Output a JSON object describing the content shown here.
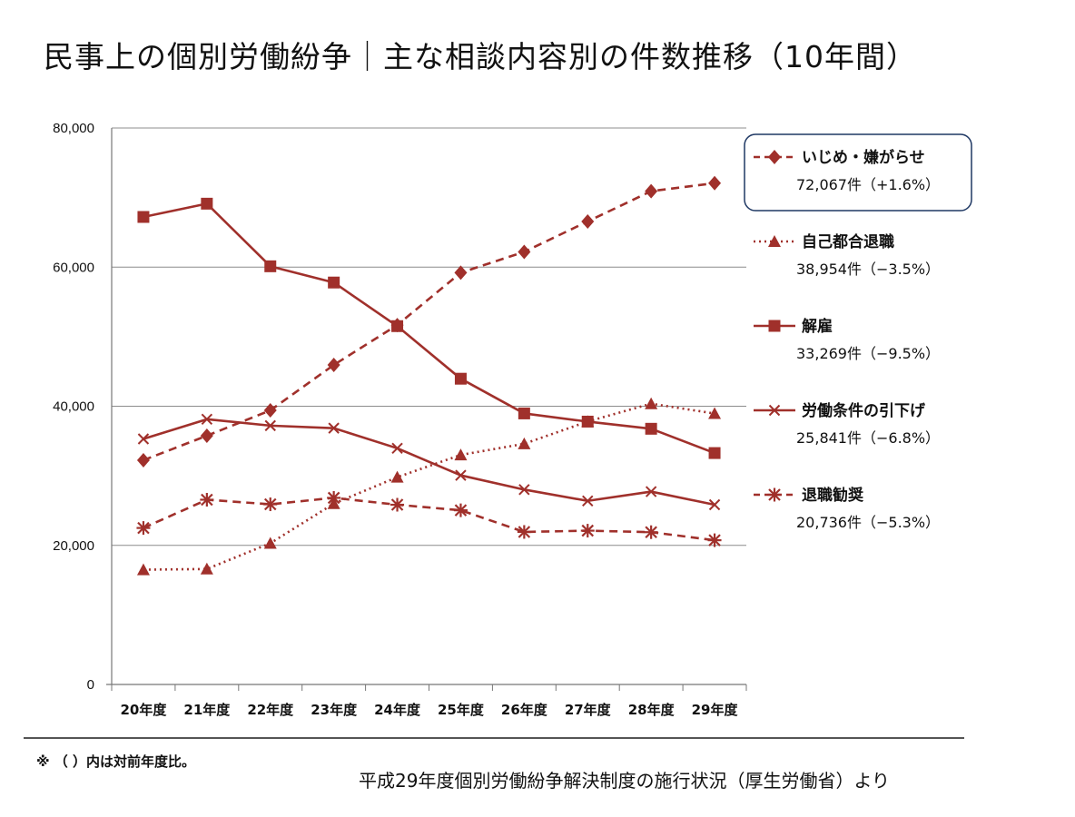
{
  "title": "民事上の個別労働紛争｜主な相談内容別の件数推移（10年間）",
  "footnote": "※ （ ）内は対前年度比。",
  "source": "平成29年度個別労働紛争解決制度の施行状況（厚生労働省）より",
  "colors": {
    "series": "#a0302b",
    "grid": "#8c8c8c",
    "highlight_border": "#1f3864"
  },
  "chart_data": {
    "type": "line",
    "categories": [
      "20年度",
      "21年度",
      "22年度",
      "23年度",
      "24年度",
      "25年度",
      "26年度",
      "27年度",
      "28年度",
      "29年度"
    ],
    "ylim": [
      0,
      80000
    ],
    "yticks": [
      0,
      20000,
      40000,
      60000,
      80000
    ],
    "ytick_labels": [
      "0",
      "20,000",
      "40,000",
      "60,000",
      "80,000"
    ],
    "grid": true,
    "legend_placement": "right",
    "series": [
      {
        "name": "いじめ・嫌がらせ",
        "stat": "72,067件（+1.6%）",
        "marker": "diamond",
        "dash": "dashed",
        "highlight": true,
        "values": [
          32242,
          35759,
          39405,
          45939,
          51670,
          59197,
          62191,
          66566,
          70917,
          72067
        ]
      },
      {
        "name": "自己都合退職",
        "stat": "38,954件（−3.5%）",
        "marker": "triangle",
        "dash": "dotted",
        "highlight": false,
        "values": [
          16500,
          16600,
          20300,
          26000,
          29800,
          33000,
          34600,
          37800,
          40364,
          38954
        ]
      },
      {
        "name": "解雇",
        "stat": "33,269件（−9.5%）",
        "marker": "square",
        "dash": "solid",
        "highlight": false,
        "values": [
          67211,
          69121,
          60118,
          57785,
          51515,
          43956,
          38966,
          37787,
          36760,
          33269
        ]
      },
      {
        "name": "労働条件の引下げ",
        "stat": "25,841件（−6.8%）",
        "marker": "x",
        "dash": "solid",
        "highlight": false,
        "values": [
          35300,
          38131,
          37210,
          36849,
          33955,
          30067,
          28015,
          26392,
          27723,
          25841
        ]
      },
      {
        "name": "退職勧奨",
        "stat": "20,736件（−5.3%）",
        "marker": "star",
        "dash": "dashed",
        "highlight": false,
        "values": [
          22500,
          26560,
          25902,
          26828,
          25838,
          25041,
          21928,
          22110,
          21894,
          20736
        ]
      }
    ]
  }
}
